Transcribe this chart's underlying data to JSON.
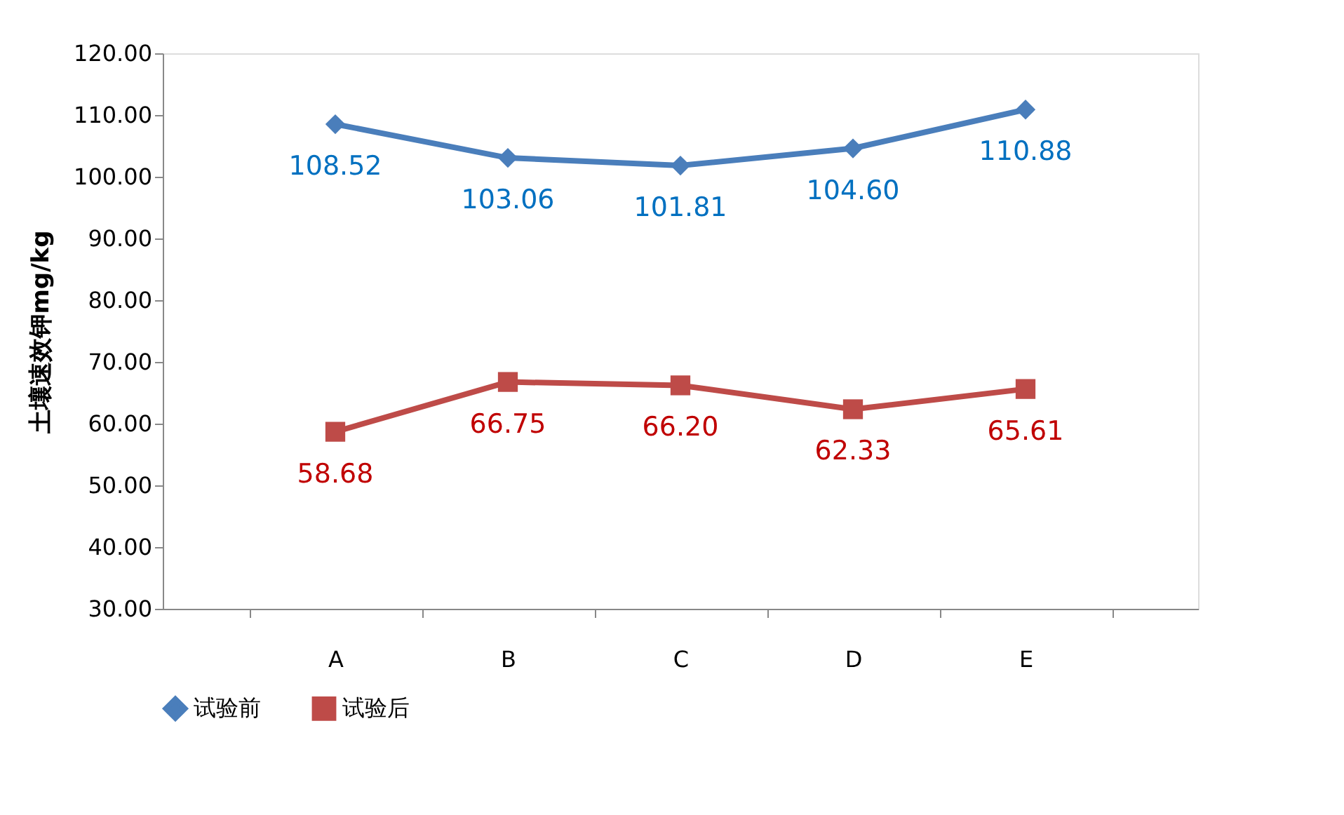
{
  "chart_data": {
    "type": "line",
    "ylabel": "土壤速效钾mg/kg",
    "categories": [
      "A",
      "B",
      "C",
      "D",
      "E"
    ],
    "series": [
      {
        "name": "试验前",
        "color": "#4a7ebb",
        "marker": "diamond",
        "values": [
          108.52,
          103.06,
          101.81,
          104.6,
          110.88
        ],
        "value_labels": [
          "108.52",
          "103.06",
          "101.81",
          "104.60",
          "110.88"
        ]
      },
      {
        "name": "试验后",
        "color": "#be4b48",
        "marker": "square",
        "values": [
          58.68,
          66.75,
          66.2,
          62.33,
          65.61
        ],
        "value_labels": [
          "58.68",
          "66.75",
          "66.20",
          "62.33",
          "65.61"
        ]
      }
    ],
    "ylim": [
      30,
      120
    ],
    "yticks": [
      {
        "value": 30,
        "label": "30.00"
      },
      {
        "value": 40,
        "label": "40.00"
      },
      {
        "value": 50,
        "label": "50.00"
      },
      {
        "value": 60,
        "label": "60.00"
      },
      {
        "value": 70,
        "label": "70.00"
      },
      {
        "value": 80,
        "label": "80.00"
      },
      {
        "value": 90,
        "label": "90.00"
      },
      {
        "value": 100,
        "label": "100.00"
      },
      {
        "value": 110,
        "label": "110.00"
      },
      {
        "value": 120,
        "label": "120.00"
      }
    ],
    "grid": false,
    "legend": "bottom",
    "line_style": "solid"
  }
}
